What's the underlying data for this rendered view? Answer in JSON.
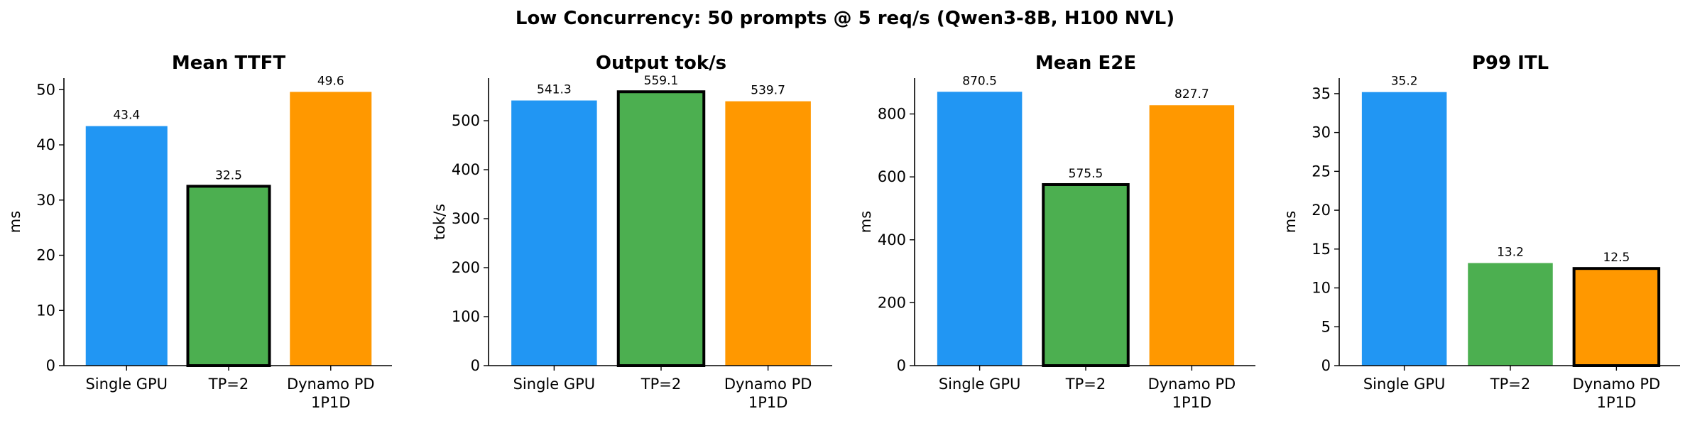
{
  "suptitle": "Low Concurrency: 50 prompts @ 5 req/s (Qwen3-8B, H100 NVL)",
  "colors": {
    "single_gpu": "#2196F3",
    "tp2": "#4CAF50",
    "dynamo": "#FF9800",
    "highlight_edge": "#000000"
  },
  "chart_data": [
    {
      "type": "bar",
      "title": "Mean TTFT",
      "ylabel": "ms",
      "xlabel": "",
      "categories": [
        "Single GPU",
        "TP=2",
        "Dynamo PD\n1P1D"
      ],
      "values": [
        43.4,
        32.5,
        49.6
      ],
      "value_labels": [
        "43.4",
        "32.5",
        "49.6"
      ],
      "ylim": [
        0,
        52.1
      ],
      "yticks": [
        0,
        10,
        20,
        30,
        40,
        50
      ],
      "highlight_index": 1,
      "grid": false
    },
    {
      "type": "bar",
      "title": "Output tok/s",
      "ylabel": "tok/s",
      "xlabel": "",
      "categories": [
        "Single GPU",
        "TP=2",
        "Dynamo PD\n1P1D"
      ],
      "values": [
        541.3,
        559.1,
        539.7
      ],
      "value_labels": [
        "541.3",
        "559.1",
        "539.7"
      ],
      "ylim": [
        0,
        587
      ],
      "yticks": [
        0,
        100,
        200,
        300,
        400,
        500
      ],
      "highlight_index": 1,
      "grid": false
    },
    {
      "type": "bar",
      "title": "Mean E2E",
      "ylabel": "ms",
      "xlabel": "",
      "categories": [
        "Single GPU",
        "TP=2",
        "Dynamo PD\n1P1D"
      ],
      "values": [
        870.5,
        575.5,
        827.7
      ],
      "value_labels": [
        "870.5",
        "575.5",
        "827.7"
      ],
      "ylim": [
        0,
        914
      ],
      "yticks": [
        0,
        200,
        400,
        600,
        800
      ],
      "highlight_index": 1,
      "grid": false
    },
    {
      "type": "bar",
      "title": "P99 ITL",
      "ylabel": "ms",
      "xlabel": "",
      "categories": [
        "Single GPU",
        "TP=2",
        "Dynamo PD\n1P1D"
      ],
      "values": [
        35.2,
        13.2,
        12.5
      ],
      "value_labels": [
        "35.2",
        "13.2",
        "12.5"
      ],
      "ylim": [
        0,
        37
      ],
      "yticks": [
        0,
        5,
        10,
        15,
        20,
        25,
        30,
        35
      ],
      "highlight_index": 2,
      "grid": false
    }
  ]
}
